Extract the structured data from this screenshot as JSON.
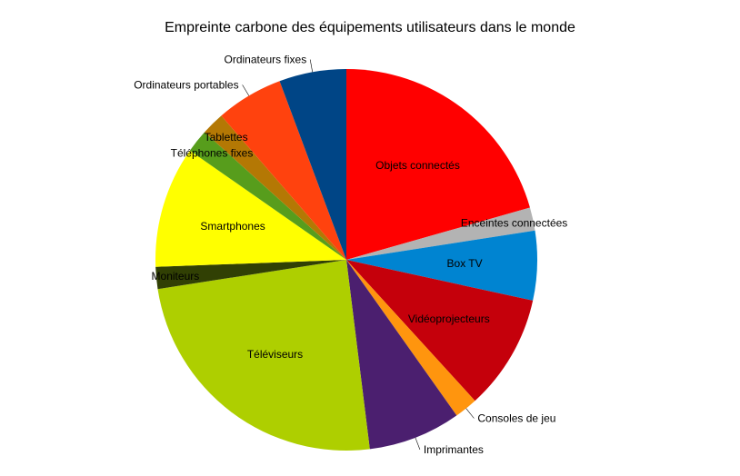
{
  "chart_data": {
    "type": "pie",
    "title": "Empreinte carbone des équipements utilisateurs dans le monde",
    "slices": [
      {
        "label": "Objets connectés",
        "value": 21.0,
        "color": "#ff0000"
      },
      {
        "label": "Enceintes connectées",
        "value": 2.0,
        "color": "#b3b3b3"
      },
      {
        "label": "Box TV",
        "value": 6.0,
        "color": "#0084d1"
      },
      {
        "label": "Vidéoprojecteurs",
        "value": 10.0,
        "color": "#c5000b"
      },
      {
        "label": "Consoles de jeu",
        "value": 2.0,
        "color": "#ff950e"
      },
      {
        "label": "Imprimantes",
        "value": 8.0,
        "color": "#4b1f6f"
      },
      {
        "label": "Téléviseurs",
        "value": 25.0,
        "color": "#aecf00"
      },
      {
        "label": "Moniteurs",
        "value": 1.9,
        "color": "#314004"
      },
      {
        "label": "Smartphones",
        "value": 10.5,
        "color": "#ffff00"
      },
      {
        "label": "Téléphones fixes",
        "value": 2.0,
        "color": "#579d1c"
      },
      {
        "label": "Tablettes",
        "value": 2.0,
        "color": "#b47804"
      },
      {
        "label": "Ordinateurs portables",
        "value": 5.8,
        "color": "#ff420e"
      },
      {
        "label": "Ordinateurs fixes",
        "value": 5.8,
        "color": "#004586"
      }
    ],
    "legend": "none",
    "start_angle_deg": 0,
    "direction": "clockwise"
  }
}
